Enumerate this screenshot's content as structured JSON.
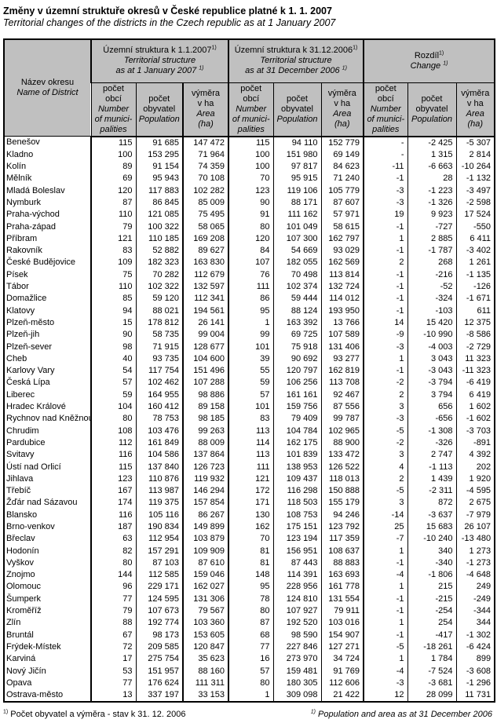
{
  "page": {
    "title_cs": "Změny v územní struktuře okresů v České republice platné k 1. 1. 2007",
    "title_en": "Territorial changes of the districts in the Czech republic as at 1 January 2007"
  },
  "footnote": {
    "marker": "1)",
    "left_cs": "Počet obyvatel a výměra - stav k 31. 12. 2006",
    "right_en": "Population and area as at 31 December 2006"
  },
  "colors": {
    "header_bg": "#c0c0c0",
    "border": "#000000",
    "text": "#000000"
  },
  "table": {
    "name_header": {
      "cs": "Název okresu",
      "en": "Name of District"
    },
    "groups": [
      {
        "title_cs": "Územní struktura k 1.1.2007",
        "title_en_1": "Territorial structure",
        "title_en_2": "as at 1 January 2007 "
      },
      {
        "title_cs": "Územní struktura k  31.12.2006",
        "title_en_1": "Territorial structure",
        "title_en_2": "as at 31 December 2006 "
      },
      {
        "title_cs": "Rozdíl",
        "title_en_1": "Change "
      }
    ],
    "subheaders": [
      {
        "cs": "počet\nobcí",
        "en": "Number\nof munici-\npalities"
      },
      {
        "cs": "počet\nobyvatel",
        "en": "Population"
      },
      {
        "cs": "výměra\nv ha",
        "en": "Area\n(ha)"
      }
    ],
    "rows": [
      {
        "name": "Benešov",
        "d2007": [
          "115",
          "91 685",
          "147 472"
        ],
        "d2006": [
          "115",
          "94 110",
          "152 779"
        ],
        "diff": [
          "-",
          "-2 425",
          "-5 307"
        ]
      },
      {
        "name": "Kladno",
        "d2007": [
          "100",
          "153 295",
          "71 964"
        ],
        "d2006": [
          "100",
          "151 980",
          "69 149"
        ],
        "diff": [
          "-",
          "1 315",
          "2 814"
        ]
      },
      {
        "name": "Kolín",
        "d2007": [
          "89",
          "91 154",
          "74 359"
        ],
        "d2006": [
          "100",
          "97 817",
          "84 623"
        ],
        "diff": [
          "-11",
          "-6 663",
          "-10 264"
        ]
      },
      {
        "name": "Mělník",
        "d2007": [
          "69",
          "95 943",
          "70 108"
        ],
        "d2006": [
          "70",
          "95 915",
          "71 240"
        ],
        "diff": [
          "-1",
          "28",
          "-1 132"
        ]
      },
      {
        "name": "Mladá Boleslav",
        "d2007": [
          "120",
          "117 883",
          "102 282"
        ],
        "d2006": [
          "123",
          "119 106",
          "105 779"
        ],
        "diff": [
          "-3",
          "-1 223",
          "-3 497"
        ]
      },
      {
        "name": "Nymburk",
        "d2007": [
          "87",
          "86 845",
          "85 009"
        ],
        "d2006": [
          "90",
          "88 171",
          "87 607"
        ],
        "diff": [
          "-3",
          "-1 326",
          "-2 598"
        ]
      },
      {
        "name": "Praha-východ",
        "d2007": [
          "110",
          "121 085",
          "75 495"
        ],
        "d2006": [
          "91",
          "111 162",
          "57 971"
        ],
        "diff": [
          "19",
          "9 923",
          "17 524"
        ]
      },
      {
        "name": "Praha-západ",
        "d2007": [
          "79",
          "100 322",
          "58 065"
        ],
        "d2006": [
          "80",
          "101 049",
          "58 615"
        ],
        "diff": [
          "-1",
          "-727",
          "-550"
        ]
      },
      {
        "name": "Příbram",
        "d2007": [
          "121",
          "110 185",
          "169 208"
        ],
        "d2006": [
          "120",
          "107 300",
          "162 797"
        ],
        "diff": [
          "1",
          "2 885",
          "6 411"
        ]
      },
      {
        "name": "Rakovník",
        "d2007": [
          "83",
          "52 882",
          "89 627"
        ],
        "d2006": [
          "84",
          "54 669",
          "93 029"
        ],
        "diff": [
          "-1",
          "-1 787",
          "-3 402"
        ]
      },
      {
        "name": "České Budějovice",
        "d2007": [
          "109",
          "182 323",
          "163 830"
        ],
        "d2006": [
          "107",
          "182 055",
          "162 569"
        ],
        "diff": [
          "2",
          "268",
          "1 261"
        ]
      },
      {
        "name": "Písek",
        "d2007": [
          "75",
          "70 282",
          "112 679"
        ],
        "d2006": [
          "76",
          "70 498",
          "113 814"
        ],
        "diff": [
          "-1",
          "-216",
          "-1 135"
        ]
      },
      {
        "name": "Tábor",
        "d2007": [
          "110",
          "102 322",
          "132 597"
        ],
        "d2006": [
          "111",
          "102 374",
          "132 724"
        ],
        "diff": [
          "-1",
          "-52",
          "-126"
        ]
      },
      {
        "name": "Domažlice",
        "d2007": [
          "85",
          "59 120",
          "112 341"
        ],
        "d2006": [
          "86",
          "59 444",
          "114 012"
        ],
        "diff": [
          "-1",
          "-324",
          "-1 671"
        ]
      },
      {
        "name": "Klatovy",
        "d2007": [
          "94",
          "88 021",
          "194 561"
        ],
        "d2006": [
          "95",
          "88 124",
          "193 950"
        ],
        "diff": [
          "-1",
          "-103",
          "611"
        ]
      },
      {
        "name": "Plzeň-město",
        "d2007": [
          "15",
          "178 812",
          "26 141"
        ],
        "d2006": [
          "1",
          "163 392",
          "13 766"
        ],
        "diff": [
          "14",
          "15 420",
          "12 375"
        ]
      },
      {
        "name": "Plzeň-jih",
        "d2007": [
          "90",
          "58 735",
          "99 004"
        ],
        "d2006": [
          "99",
          "69 725",
          "107 589"
        ],
        "diff": [
          "-9",
          "-10 990",
          "-8 586"
        ]
      },
      {
        "name": "Plzeň-sever",
        "d2007": [
          "98",
          "71 915",
          "128 677"
        ],
        "d2006": [
          "101",
          "75 918",
          "131 406"
        ],
        "diff": [
          "-3",
          "-4 003",
          "-2 729"
        ]
      },
      {
        "name": "Cheb",
        "d2007": [
          "40",
          "93 735",
          "104 600"
        ],
        "d2006": [
          "39",
          "90 692",
          "93 277"
        ],
        "diff": [
          "1",
          "3 043",
          "11 323"
        ]
      },
      {
        "name": "Karlovy Vary",
        "d2007": [
          "54",
          "117 754",
          "151 496"
        ],
        "d2006": [
          "55",
          "120 797",
          "162 819"
        ],
        "diff": [
          "-1",
          "-3 043",
          "-11 323"
        ]
      },
      {
        "name": "Česká Lípa",
        "d2007": [
          "57",
          "102 462",
          "107 288"
        ],
        "d2006": [
          "59",
          "106 256",
          "113 708"
        ],
        "diff": [
          "-2",
          "-3 794",
          "-6 419"
        ]
      },
      {
        "name": "Liberec",
        "d2007": [
          "59",
          "164 955",
          "98 886"
        ],
        "d2006": [
          "57",
          "161 161",
          "92 467"
        ],
        "diff": [
          "2",
          "3 794",
          "6 419"
        ]
      },
      {
        "name": "Hradec Králové",
        "d2007": [
          "104",
          "160 412",
          "89 158"
        ],
        "d2006": [
          "101",
          "159 756",
          "87 556"
        ],
        "diff": [
          "3",
          "656",
          "1 602"
        ]
      },
      {
        "name": "Rychnov nad Kněžnou",
        "d2007": [
          "80",
          "78 753",
          "98 185"
        ],
        "d2006": [
          "83",
          "79 409",
          "99 787"
        ],
        "diff": [
          "-3",
          "-656",
          "-1 602"
        ]
      },
      {
        "name": "Chrudim",
        "d2007": [
          "108",
          "103 476",
          "99 263"
        ],
        "d2006": [
          "113",
          "104 784",
          "102 965"
        ],
        "diff": [
          "-5",
          "-1 308",
          "-3 703"
        ]
      },
      {
        "name": "Pardubice",
        "d2007": [
          "112",
          "161 849",
          "88 009"
        ],
        "d2006": [
          "114",
          "162 175",
          "88 900"
        ],
        "diff": [
          "-2",
          "-326",
          "-891"
        ]
      },
      {
        "name": "Svitavy",
        "d2007": [
          "116",
          "104 586",
          "137 864"
        ],
        "d2006": [
          "113",
          "101 839",
          "133 472"
        ],
        "diff": [
          "3",
          "2 747",
          "4 392"
        ]
      },
      {
        "name": "Ústí nad Orlicí",
        "d2007": [
          "115",
          "137 840",
          "126 723"
        ],
        "d2006": [
          "111",
          "138 953",
          "126 522"
        ],
        "diff": [
          "4",
          "-1 113",
          "202"
        ]
      },
      {
        "name": "Jihlava",
        "d2007": [
          "123",
          "110 876",
          "119 932"
        ],
        "d2006": [
          "121",
          "109 437",
          "118 013"
        ],
        "diff": [
          "2",
          "1 439",
          "1 920"
        ]
      },
      {
        "name": "Třebíč",
        "d2007": [
          "167",
          "113 987",
          "146 294"
        ],
        "d2006": [
          "172",
          "116 298",
          "150 888"
        ],
        "diff": [
          "-5",
          "-2 311",
          "-4 595"
        ]
      },
      {
        "name": "Žďár nad Sázavou",
        "d2007": [
          "174",
          "119 375",
          "157 854"
        ],
        "d2006": [
          "171",
          "118 503",
          "155 179"
        ],
        "diff": [
          "3",
          "872",
          "2 675"
        ]
      },
      {
        "name": "Blansko",
        "d2007": [
          "116",
          "105 116",
          "86 267"
        ],
        "d2006": [
          "130",
          "108 753",
          "94 246"
        ],
        "diff": [
          "-14",
          "-3 637",
          "-7 979"
        ]
      },
      {
        "name": "Brno-venkov",
        "d2007": [
          "187",
          "190 834",
          "149 899"
        ],
        "d2006": [
          "162",
          "175 151",
          "123 792"
        ],
        "diff": [
          "25",
          "15 683",
          "26 107"
        ]
      },
      {
        "name": "Břeclav",
        "d2007": [
          "63",
          "112 954",
          "103 879"
        ],
        "d2006": [
          "70",
          "123 194",
          "117 359"
        ],
        "diff": [
          "-7",
          "-10 240",
          "-13 480"
        ]
      },
      {
        "name": "Hodonín",
        "d2007": [
          "82",
          "157 291",
          "109 909"
        ],
        "d2006": [
          "81",
          "156 951",
          "108 637"
        ],
        "diff": [
          "1",
          "340",
          "1 273"
        ]
      },
      {
        "name": "Vyškov",
        "d2007": [
          "80",
          "87 103",
          "87 610"
        ],
        "d2006": [
          "81",
          "87 443",
          "88 883"
        ],
        "diff": [
          "-1",
          "-340",
          "-1 273"
        ]
      },
      {
        "name": "Znojmo",
        "d2007": [
          "144",
          "112 585",
          "159 046"
        ],
        "d2006": [
          "148",
          "114 391",
          "163 693"
        ],
        "diff": [
          "-4",
          "-1 806",
          "-4 648"
        ]
      },
      {
        "name": "Olomouc",
        "d2007": [
          "96",
          "229 171",
          "162 027"
        ],
        "d2006": [
          "95",
          "228 956",
          "161 778"
        ],
        "diff": [
          "1",
          "215",
          "249"
        ]
      },
      {
        "name": "Šumperk",
        "d2007": [
          "77",
          "124 595",
          "131 306"
        ],
        "d2006": [
          "78",
          "124 810",
          "131 554"
        ],
        "diff": [
          "-1",
          "-215",
          "-249"
        ]
      },
      {
        "name": "Kroměříž",
        "d2007": [
          "79",
          "107 673",
          "79 567"
        ],
        "d2006": [
          "80",
          "107 927",
          "79 911"
        ],
        "diff": [
          "-1",
          "-254",
          "-344"
        ]
      },
      {
        "name": "Zlín",
        "d2007": [
          "88",
          "192 774",
          "103 360"
        ],
        "d2006": [
          "87",
          "192 520",
          "103 016"
        ],
        "diff": [
          "1",
          "254",
          "344"
        ]
      },
      {
        "name": "Bruntál",
        "d2007": [
          "67",
          "98 173",
          "153 605"
        ],
        "d2006": [
          "68",
          "98 590",
          "154 907"
        ],
        "diff": [
          "-1",
          "-417",
          "-1 302"
        ]
      },
      {
        "name": "Frýdek-Místek",
        "d2007": [
          "72",
          "209 585",
          "120 847"
        ],
        "d2006": [
          "77",
          "227 846",
          "127 271"
        ],
        "diff": [
          "-5",
          "-18 261",
          "-6 424"
        ]
      },
      {
        "name": "Karviná",
        "d2007": [
          "17",
          "275 754",
          "35 623"
        ],
        "d2006": [
          "16",
          "273 970",
          "34 724"
        ],
        "diff": [
          "1",
          "1 784",
          "899"
        ]
      },
      {
        "name": "Nový Jičín",
        "d2007": [
          "53",
          "151 957",
          "88 160"
        ],
        "d2006": [
          "57",
          "159 481",
          "91 769"
        ],
        "diff": [
          "-4",
          "-7 524",
          "-3 608"
        ]
      },
      {
        "name": "Opava",
        "d2007": [
          "77",
          "176 624",
          "111 311"
        ],
        "d2006": [
          "80",
          "180 305",
          "112 606"
        ],
        "diff": [
          "-3",
          "-3 681",
          "-1 296"
        ]
      },
      {
        "name": "Ostrava-město",
        "d2007": [
          "13",
          "337 197",
          "33 153"
        ],
        "d2006": [
          "1",
          "309 098",
          "21 422"
        ],
        "diff": [
          "12",
          "28 099",
          "11 731"
        ]
      }
    ]
  }
}
